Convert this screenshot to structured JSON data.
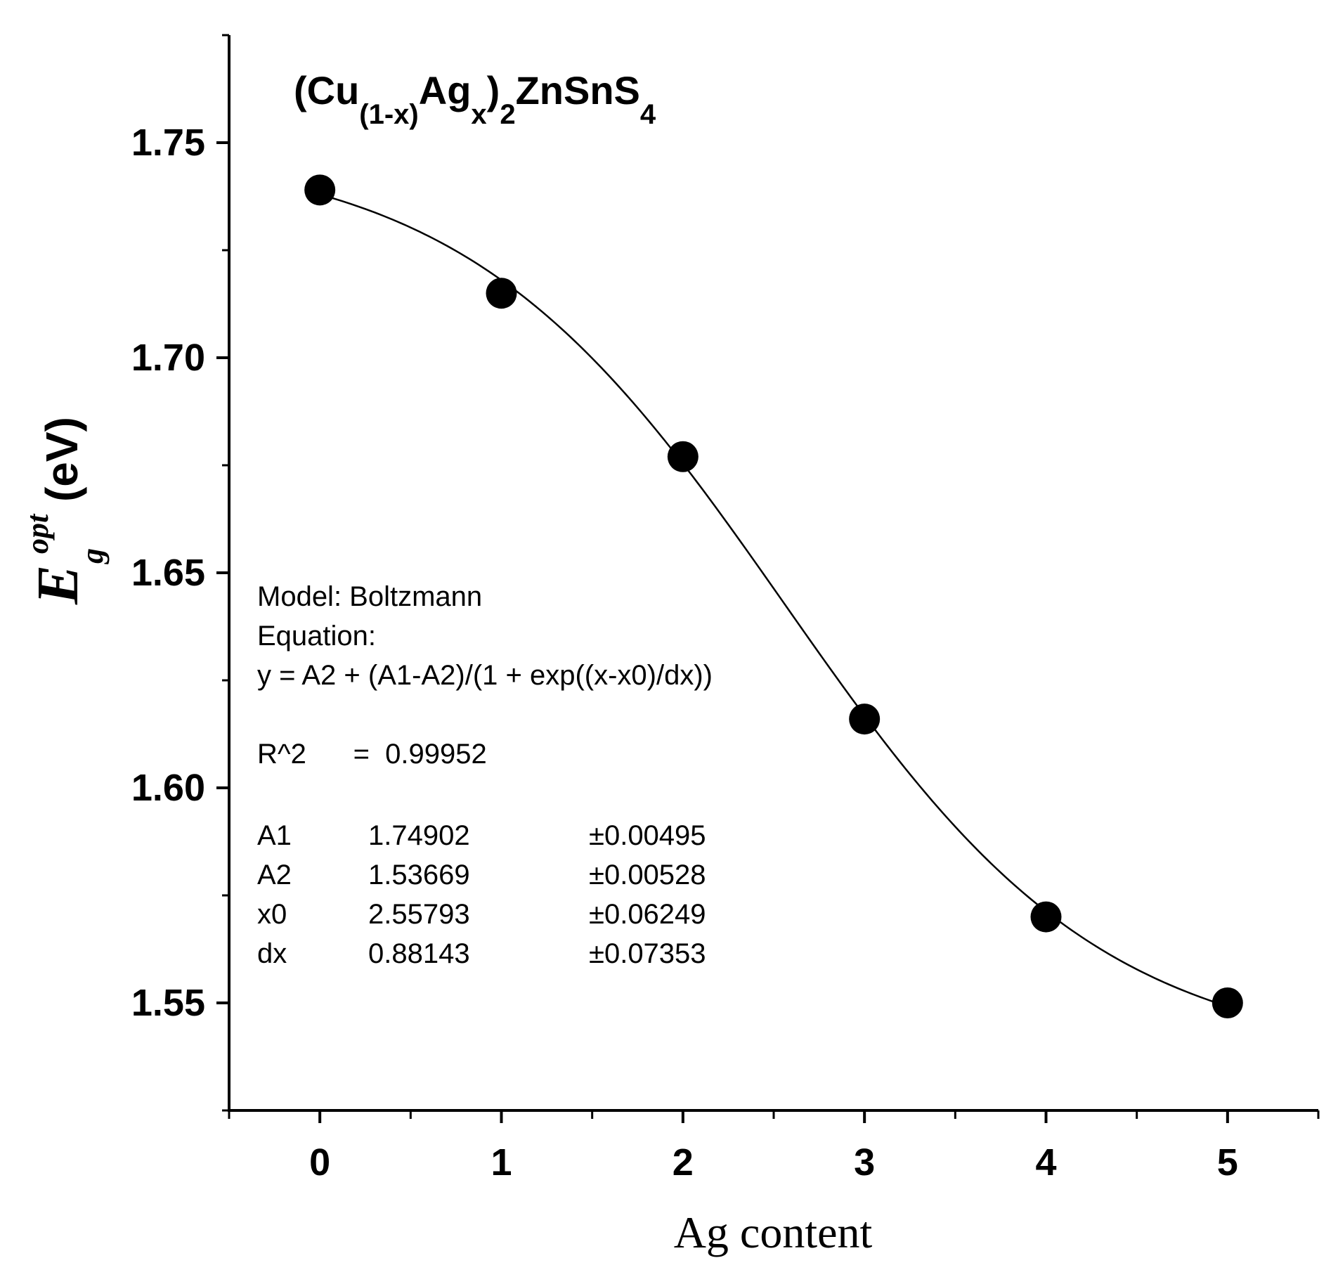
{
  "chart_data": {
    "type": "scatter",
    "title_parts": [
      "(Cu",
      "(1-x)",
      "Ag",
      "x",
      ")",
      "2",
      "ZnSnS",
      "4"
    ],
    "xlabel": "Ag content",
    "ylabel_parts": [
      "E",
      "g",
      "opt",
      "(eV)"
    ],
    "x_ticks": [
      "0",
      "1",
      "2",
      "3",
      "4",
      "5"
    ],
    "y_ticks": [
      "1.55",
      "1.60",
      "1.65",
      "1.70",
      "1.75"
    ],
    "xlim": [
      -0.5,
      5.5
    ],
    "ylim": [
      1.525,
      1.775
    ],
    "grid": false,
    "points": {
      "x": [
        0,
        1,
        2,
        3,
        4,
        5
      ],
      "y": [
        1.739,
        1.715,
        1.677,
        1.616,
        1.57,
        1.55
      ]
    },
    "fit": {
      "model": "Boltzmann",
      "A1": 1.74902,
      "A2": 1.53669,
      "x0": 2.55793,
      "dx": 0.88143
    },
    "annotation": {
      "lines": [
        "Model: Boltzmann",
        "Equation:",
        "y = A2 + (A1-A2)/(1 + exp((x-x0)/dx))",
        "",
        "R^2      =  0.99952"
      ],
      "params": [
        [
          "A1",
          "1.74902",
          "±0.00495"
        ],
        [
          "A2",
          "1.53669",
          "±0.00528"
        ],
        [
          "x0",
          "2.55793",
          "±0.06249"
        ],
        [
          "dx",
          "0.88143",
          "±0.07353"
        ]
      ]
    }
  }
}
